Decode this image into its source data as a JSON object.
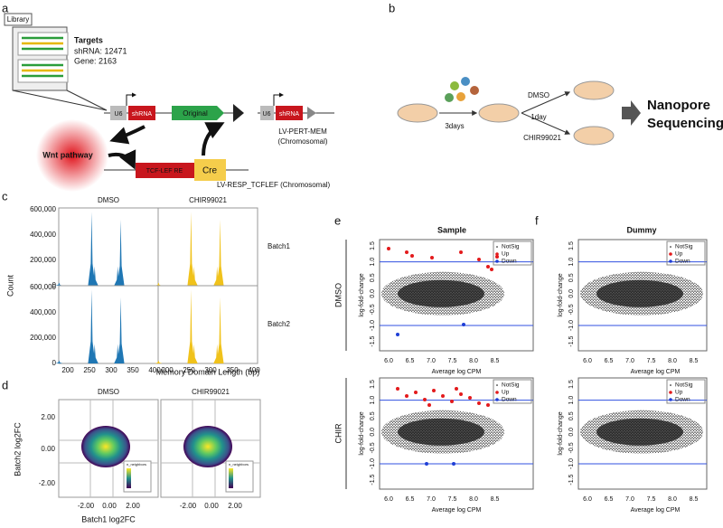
{
  "a": {
    "label": "a",
    "library": "Library",
    "targets": "Targets",
    "shrna_count": "shRNA: 12471",
    "gene_count": "Gene: 2163",
    "u6": "U6",
    "shrna": "shRNA",
    "original": "Original",
    "wnt": "Wnt pathway",
    "tcf": "TCF-LEF RE",
    "cre": "Cre",
    "lv_pert": "LV-PERT-MEM",
    "chromosomal": "(Chromosomal)",
    "lv_resp": "LV-RESP_TCFLEF (Chromosomal)"
  },
  "b": {
    "label": "b",
    "days": "3days",
    "dmso": "DMSO",
    "day": "1day",
    "chir": "CHIR99021",
    "nanopore": "Nanopore",
    "sequencing": "Sequencing"
  },
  "c": {
    "label": "c",
    "columns": [
      "DMSO",
      "CHIR99021"
    ],
    "rows": [
      "Batch1",
      "Batch2"
    ],
    "yticks": [
      "0",
      "200,000",
      "400,000",
      "600,000"
    ],
    "xticks": [
      "200",
      "250",
      "300",
      "350",
      "400"
    ],
    "ylabel": "Count",
    "xlabel": "Memory Domain Length (bp)"
  },
  "d": {
    "label": "d",
    "columns": [
      "DMSO",
      "CHIR99021"
    ],
    "yticks": [
      "2.00",
      "0.00",
      "-2.00"
    ],
    "xticks": [
      "-2.00",
      "0.00",
      "2.00"
    ],
    "ylabel": "Batch2 log2FC",
    "xlabel": "Batch1 log2FC",
    "legend": "n_neighbors"
  },
  "e": {
    "label": "e",
    "title": "Sample",
    "rows": [
      "DMSO",
      "CHIR"
    ],
    "yticks": [
      "1.5",
      "1.0",
      "0.5",
      "0.0",
      "-0.5",
      "-1.0",
      "-1.5"
    ],
    "xticks": [
      "6.0",
      "6.5",
      "7.0",
      "7.5",
      "8.0",
      "8.5"
    ],
    "xlabel": "Average log CPM",
    "ylabel": "log-fold-change",
    "legend": [
      "NotSig",
      "Up",
      "Down"
    ]
  },
  "f": {
    "label": "f",
    "title": "Dummy",
    "yticks": [
      "1.5",
      "1.0",
      "0.5",
      "0.0",
      "-0.5",
      "-1.0",
      "-1.5"
    ],
    "xticks": [
      "6.0",
      "6.5",
      "7.0",
      "7.5",
      "8.0",
      "8.5"
    ],
    "xlabel": "Average log CPM",
    "ylabel": "log-fold-change",
    "legend": [
      "NotSig",
      "Up",
      "Down"
    ]
  }
}
